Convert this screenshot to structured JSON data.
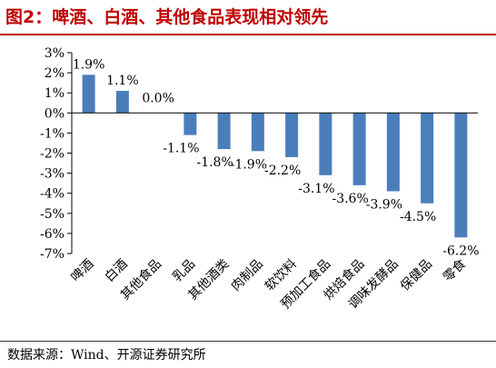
{
  "figure": {
    "title": "图2：啤酒、白酒、其他食品表现相对领先",
    "source": "数据来源：Wind、开源证券研究所"
  },
  "chart_data": {
    "type": "bar",
    "title": "",
    "xlabel": "",
    "ylabel": "",
    "categories": [
      "啤酒",
      "白酒",
      "其他食品",
      "乳品",
      "其他酒类",
      "肉制品",
      "软饮料",
      "预加工食品",
      "烘焙食品",
      "调味发酵品",
      "保健品",
      "零食"
    ],
    "values": [
      1.9,
      1.1,
      0.0,
      -1.1,
      -1.8,
      -1.9,
      -2.2,
      -3.1,
      -3.6,
      -3.9,
      -4.5,
      -6.2
    ],
    "data_labels": [
      "1.9%",
      "1.1%",
      "0.0%",
      "-1.1%",
      "-1.8%",
      "-1.9%",
      "-2.2%",
      "-3.1%",
      "-3.6%",
      "-3.9%",
      "-4.5%",
      "-6.2%"
    ],
    "yticks": [
      3,
      2,
      1,
      0,
      -1,
      -2,
      -3,
      -4,
      -5,
      -6,
      -7
    ],
    "ytick_labels": [
      "3%",
      "2%",
      "1%",
      "0%",
      "-1%",
      "-2%",
      "-3%",
      "-4%",
      "-5%",
      "-6%",
      "-7%"
    ],
    "ylim": [
      -7,
      3
    ],
    "bar_color": "#4a7ebb",
    "grid": false,
    "legend": "none"
  }
}
